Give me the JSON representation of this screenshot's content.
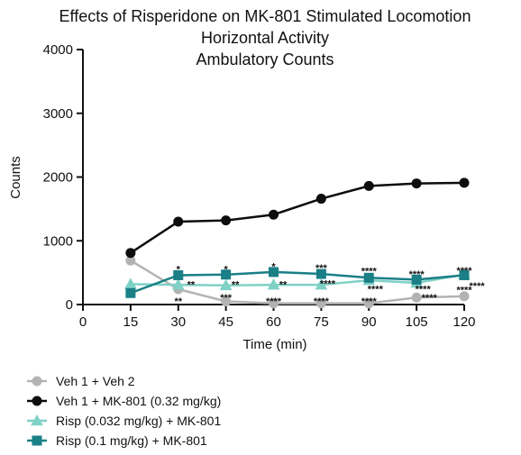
{
  "chart_data": {
    "type": "line",
    "title_lines": [
      "Effects of Risperidone on MK-801 Stimulated Locomotion",
      "Horizontal Activity",
      "Ambulatory Counts"
    ],
    "xlabel": "Time (min)",
    "ylabel": "Counts",
    "xlim": [
      0,
      120
    ],
    "ylim": [
      0,
      4000
    ],
    "x_ticks": [
      0,
      15,
      30,
      45,
      60,
      75,
      90,
      105,
      120
    ],
    "y_ticks": [
      0,
      1000,
      2000,
      3000,
      4000
    ],
    "grid": false,
    "legend_position": "bottom-left",
    "x": [
      15,
      30,
      45,
      60,
      75,
      90,
      105,
      120
    ],
    "series": [
      {
        "name": "Veh 1 + Veh 2",
        "color": "#b3b3b3",
        "marker": "circle",
        "values": [
          690,
          240,
          50,
          20,
          20,
          20,
          110,
          130
        ]
      },
      {
        "name": "Veh 1 + MK-801 (0.32 mg/kg)",
        "color": "#0d0d0d",
        "marker": "circle",
        "values": [
          810,
          1300,
          1320,
          1410,
          1660,
          1860,
          1900,
          1910
        ]
      },
      {
        "name": "Risp (0.032 mg/kg) + MK-801",
        "color": "#7fd1c6",
        "marker": "triangle",
        "values": [
          320,
          310,
          300,
          310,
          310,
          380,
          340,
          470
        ]
      },
      {
        "name": "Risp (0.1 mg/kg) + MK-801",
        "color": "#1a7f86",
        "marker": "square",
        "values": [
          180,
          460,
          470,
          510,
          480,
          420,
          390,
          460
        ]
      }
    ],
    "annotations": [
      {
        "x": 30,
        "y": 560,
        "text": "*"
      },
      {
        "x": 45,
        "y": 560,
        "text": "*"
      },
      {
        "x": 60,
        "y": 600,
        "text": "*"
      },
      {
        "x": 75,
        "y": 580,
        "text": "***"
      },
      {
        "x": 90,
        "y": 530,
        "text": "****"
      },
      {
        "x": 105,
        "y": 480,
        "text": "****"
      },
      {
        "x": 120,
        "y": 540,
        "text": "****"
      },
      {
        "x": 34,
        "y": 320,
        "text": "**"
      },
      {
        "x": 48,
        "y": 320,
        "text": "**"
      },
      {
        "x": 63,
        "y": 320,
        "text": "**"
      },
      {
        "x": 77,
        "y": 330,
        "text": "****"
      },
      {
        "x": 92,
        "y": 250,
        "text": "****"
      },
      {
        "x": 107,
        "y": 250,
        "text": "****"
      },
      {
        "x": 124,
        "y": 300,
        "text": "****"
      },
      {
        "x": 30,
        "y": 60,
        "text": "**"
      },
      {
        "x": 45,
        "y": 110,
        "text": "***"
      },
      {
        "x": 60,
        "y": 60,
        "text": "****"
      },
      {
        "x": 75,
        "y": 60,
        "text": "****"
      },
      {
        "x": 90,
        "y": 60,
        "text": "****"
      },
      {
        "x": 109,
        "y": 110,
        "text": "****"
      },
      {
        "x": 120,
        "y": 230,
        "text": "****"
      }
    ]
  }
}
